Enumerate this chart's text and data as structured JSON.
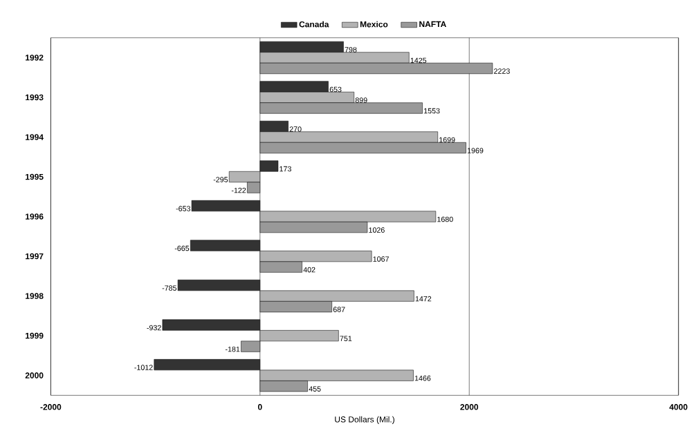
{
  "chart_data": {
    "type": "bar",
    "orientation": "horizontal",
    "xlabel": "US Dollars (Mil.)",
    "categories": [
      "1992",
      "1993",
      "1994",
      "1995",
      "1996",
      "1997",
      "1998",
      "1999",
      "2000"
    ],
    "series": [
      {
        "name": "Canada",
        "color": "#333333",
        "values": [
          798,
          653,
          270,
          173,
          -653,
          -665,
          -785,
          -932,
          -1012
        ]
      },
      {
        "name": "Mexico",
        "color": "#b3b3b3",
        "values": [
          1425,
          899,
          1699,
          -295,
          1680,
          1067,
          1472,
          751,
          1466
        ]
      },
      {
        "name": "NAFTA",
        "color": "#999999",
        "values": [
          2223,
          1553,
          1969,
          -122,
          1026,
          402,
          687,
          -181,
          455
        ]
      }
    ],
    "xlim": [
      -2000,
      4000
    ],
    "xticks": [
      -2000,
      0,
      2000,
      4000
    ],
    "grid": "x",
    "legend": "top",
    "data_labels": true
  }
}
